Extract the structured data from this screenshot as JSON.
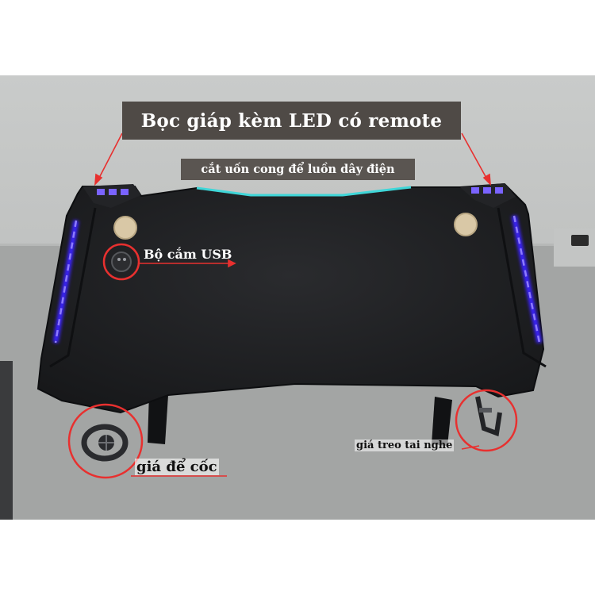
{
  "image": {
    "subject": "gaming desk product photo",
    "annotations": {
      "banner_text": "Bọc giáp kèm LED có remote",
      "cable_cut_text": "cắt uốn cong để luồn dây điện",
      "usb_text": "Bộ cắm USB",
      "cup_holder_text": "giá để cốc",
      "headset_hook_text": "giá treo tai nghe"
    },
    "colors": {
      "desk": "#1b1c1e",
      "led": "#5b3df2",
      "cyan_strip": "#3fd6d8",
      "marker_circle": "#e8302f",
      "banner_bg": "#4f4a46"
    }
  }
}
